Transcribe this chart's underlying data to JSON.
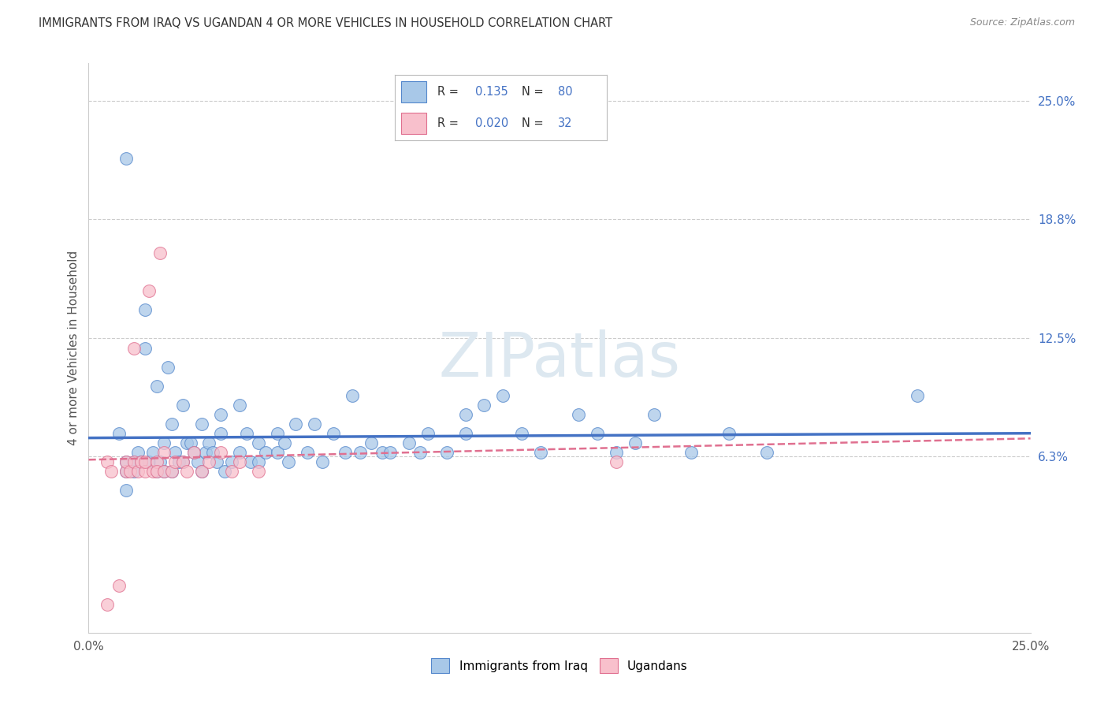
{
  "title": "IMMIGRANTS FROM IRAQ VS UGANDAN 4 OR MORE VEHICLES IN HOUSEHOLD CORRELATION CHART",
  "source": "Source: ZipAtlas.com",
  "ylabel": "4 or more Vehicles in Household",
  "xlim": [
    0.0,
    0.25
  ],
  "ylim": [
    -0.03,
    0.27
  ],
  "xtick_positions": [
    0.0,
    0.25
  ],
  "xtick_labels": [
    "0.0%",
    "25.0%"
  ],
  "ytick_labels_right": [
    "6.3%",
    "12.5%",
    "18.8%",
    "25.0%"
  ],
  "ytick_positions_right": [
    0.063,
    0.125,
    0.188,
    0.25
  ],
  "legend_labels_bottom": [
    "Immigrants from Iraq",
    "Ugandans"
  ],
  "R_iraq": 0.135,
  "N_iraq": 80,
  "R_uganda": 0.02,
  "N_uganda": 32,
  "iraq_color": "#a8c8e8",
  "iraq_edge_color": "#5588cc",
  "iraq_line_color": "#4472c4",
  "uganda_color": "#f8c0cc",
  "uganda_edge_color": "#e07090",
  "uganda_line_color": "#e07090",
  "watermark_color": "#dde8f0",
  "iraq_scatter_x": [
    0.008,
    0.01,
    0.01,
    0.01,
    0.012,
    0.012,
    0.013,
    0.014,
    0.015,
    0.015,
    0.016,
    0.017,
    0.018,
    0.018,
    0.019,
    0.02,
    0.02,
    0.021,
    0.022,
    0.022,
    0.023,
    0.024,
    0.025,
    0.025,
    0.026,
    0.027,
    0.028,
    0.029,
    0.03,
    0.03,
    0.031,
    0.032,
    0.033,
    0.034,
    0.035,
    0.035,
    0.036,
    0.038,
    0.04,
    0.04,
    0.042,
    0.043,
    0.045,
    0.045,
    0.047,
    0.05,
    0.05,
    0.052,
    0.053,
    0.055,
    0.058,
    0.06,
    0.062,
    0.065,
    0.068,
    0.07,
    0.072,
    0.075,
    0.078,
    0.08,
    0.085,
    0.088,
    0.09,
    0.095,
    0.1,
    0.1,
    0.105,
    0.11,
    0.115,
    0.12,
    0.13,
    0.135,
    0.14,
    0.145,
    0.15,
    0.16,
    0.17,
    0.18,
    0.22,
    0.01
  ],
  "iraq_scatter_y": [
    0.075,
    0.055,
    0.045,
    0.06,
    0.055,
    0.06,
    0.065,
    0.06,
    0.14,
    0.12,
    0.06,
    0.065,
    0.055,
    0.1,
    0.06,
    0.07,
    0.055,
    0.11,
    0.08,
    0.055,
    0.065,
    0.06,
    0.09,
    0.06,
    0.07,
    0.07,
    0.065,
    0.06,
    0.08,
    0.055,
    0.065,
    0.07,
    0.065,
    0.06,
    0.085,
    0.075,
    0.055,
    0.06,
    0.09,
    0.065,
    0.075,
    0.06,
    0.07,
    0.06,
    0.065,
    0.065,
    0.075,
    0.07,
    0.06,
    0.08,
    0.065,
    0.08,
    0.06,
    0.075,
    0.065,
    0.095,
    0.065,
    0.07,
    0.065,
    0.065,
    0.07,
    0.065,
    0.075,
    0.065,
    0.085,
    0.075,
    0.09,
    0.095,
    0.075,
    0.065,
    0.085,
    0.075,
    0.065,
    0.07,
    0.085,
    0.065,
    0.075,
    0.065,
    0.095,
    0.22
  ],
  "uganda_scatter_x": [
    0.005,
    0.006,
    0.008,
    0.01,
    0.01,
    0.011,
    0.012,
    0.012,
    0.013,
    0.014,
    0.015,
    0.015,
    0.016,
    0.017,
    0.018,
    0.018,
    0.019,
    0.02,
    0.02,
    0.022,
    0.023,
    0.025,
    0.026,
    0.028,
    0.03,
    0.032,
    0.035,
    0.038,
    0.04,
    0.045,
    0.14,
    0.005
  ],
  "uganda_scatter_y": [
    0.06,
    0.055,
    -0.005,
    0.055,
    0.06,
    0.055,
    0.12,
    0.06,
    0.055,
    0.06,
    0.055,
    0.06,
    0.15,
    0.055,
    0.06,
    0.055,
    0.17,
    0.055,
    0.065,
    0.055,
    0.06,
    0.06,
    0.055,
    0.065,
    0.055,
    0.06,
    0.065,
    0.055,
    0.06,
    0.055,
    0.06,
    -0.015
  ]
}
